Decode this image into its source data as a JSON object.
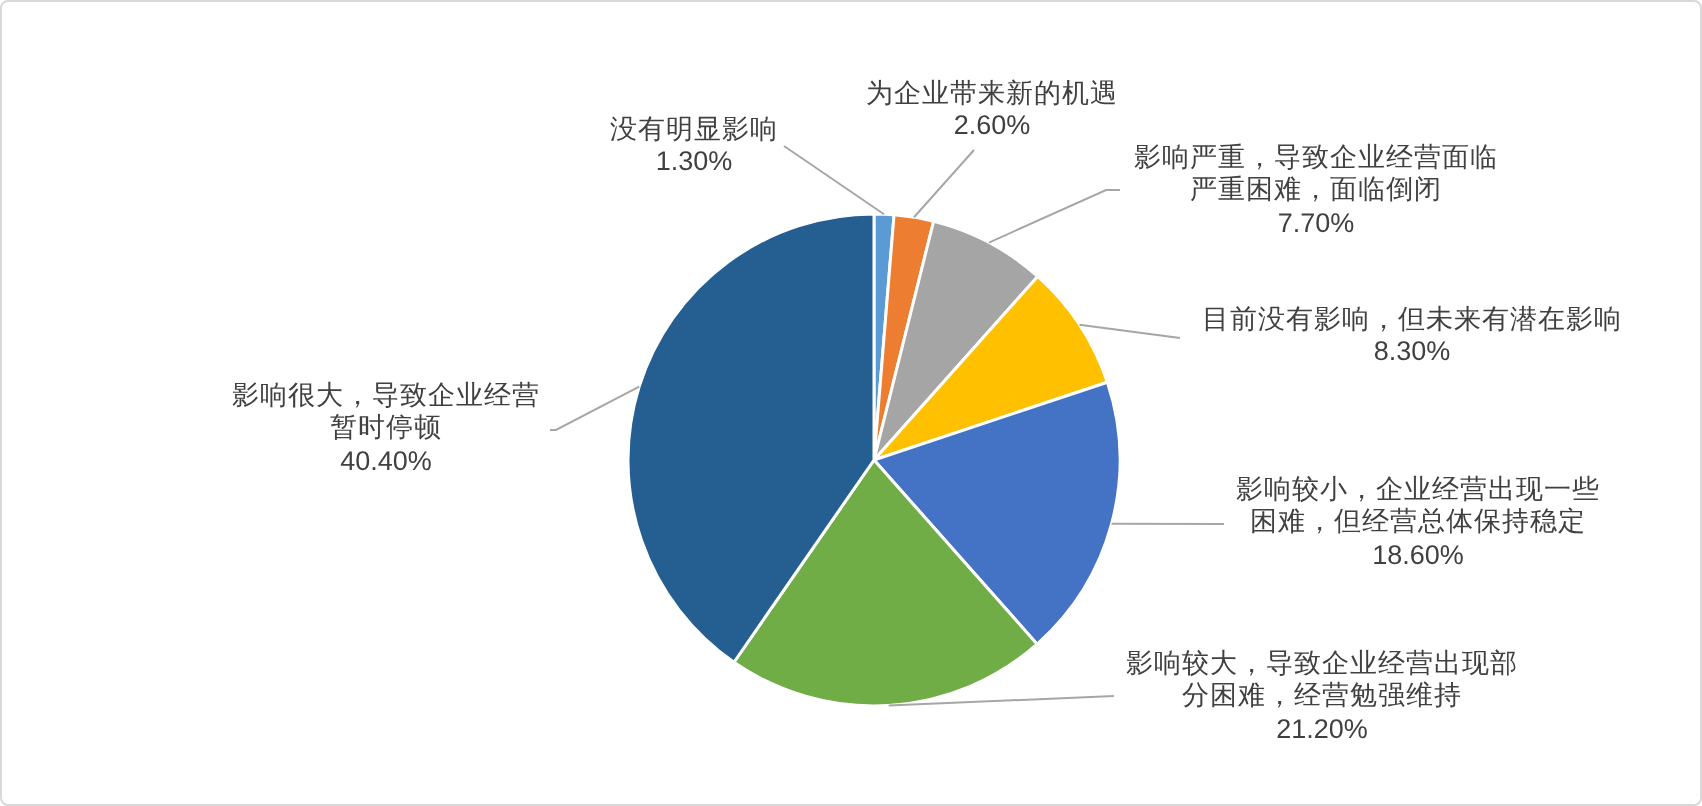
{
  "chart_data": {
    "type": "pie",
    "categories": [
      "没有明显影响",
      "为企业带来新的机遇",
      "影响严重，导致企业经营面临严重困难，面临倒闭",
      "目前没有影响，但未来有潜在影响",
      "影响较小，企业经营出现一些困难，但经营总体保持稳定",
      "影响较大，导致企业经营出现部分困难，经营勉强维持",
      "影响很大，导致企业经营暂时停顿"
    ],
    "values": [
      1.3,
      2.6,
      7.7,
      8.3,
      18.6,
      21.2,
      40.4
    ],
    "colors": [
      "#5b9bd5",
      "#ed7d31",
      "#a5a5a5",
      "#ffc000",
      "#4472c4",
      "#70ad47",
      "#255e91"
    ],
    "value_labels": [
      "1.30%",
      "2.60%",
      "7.70%",
      "8.30%",
      "18.60%",
      "21.20%",
      "40.40%"
    ]
  }
}
